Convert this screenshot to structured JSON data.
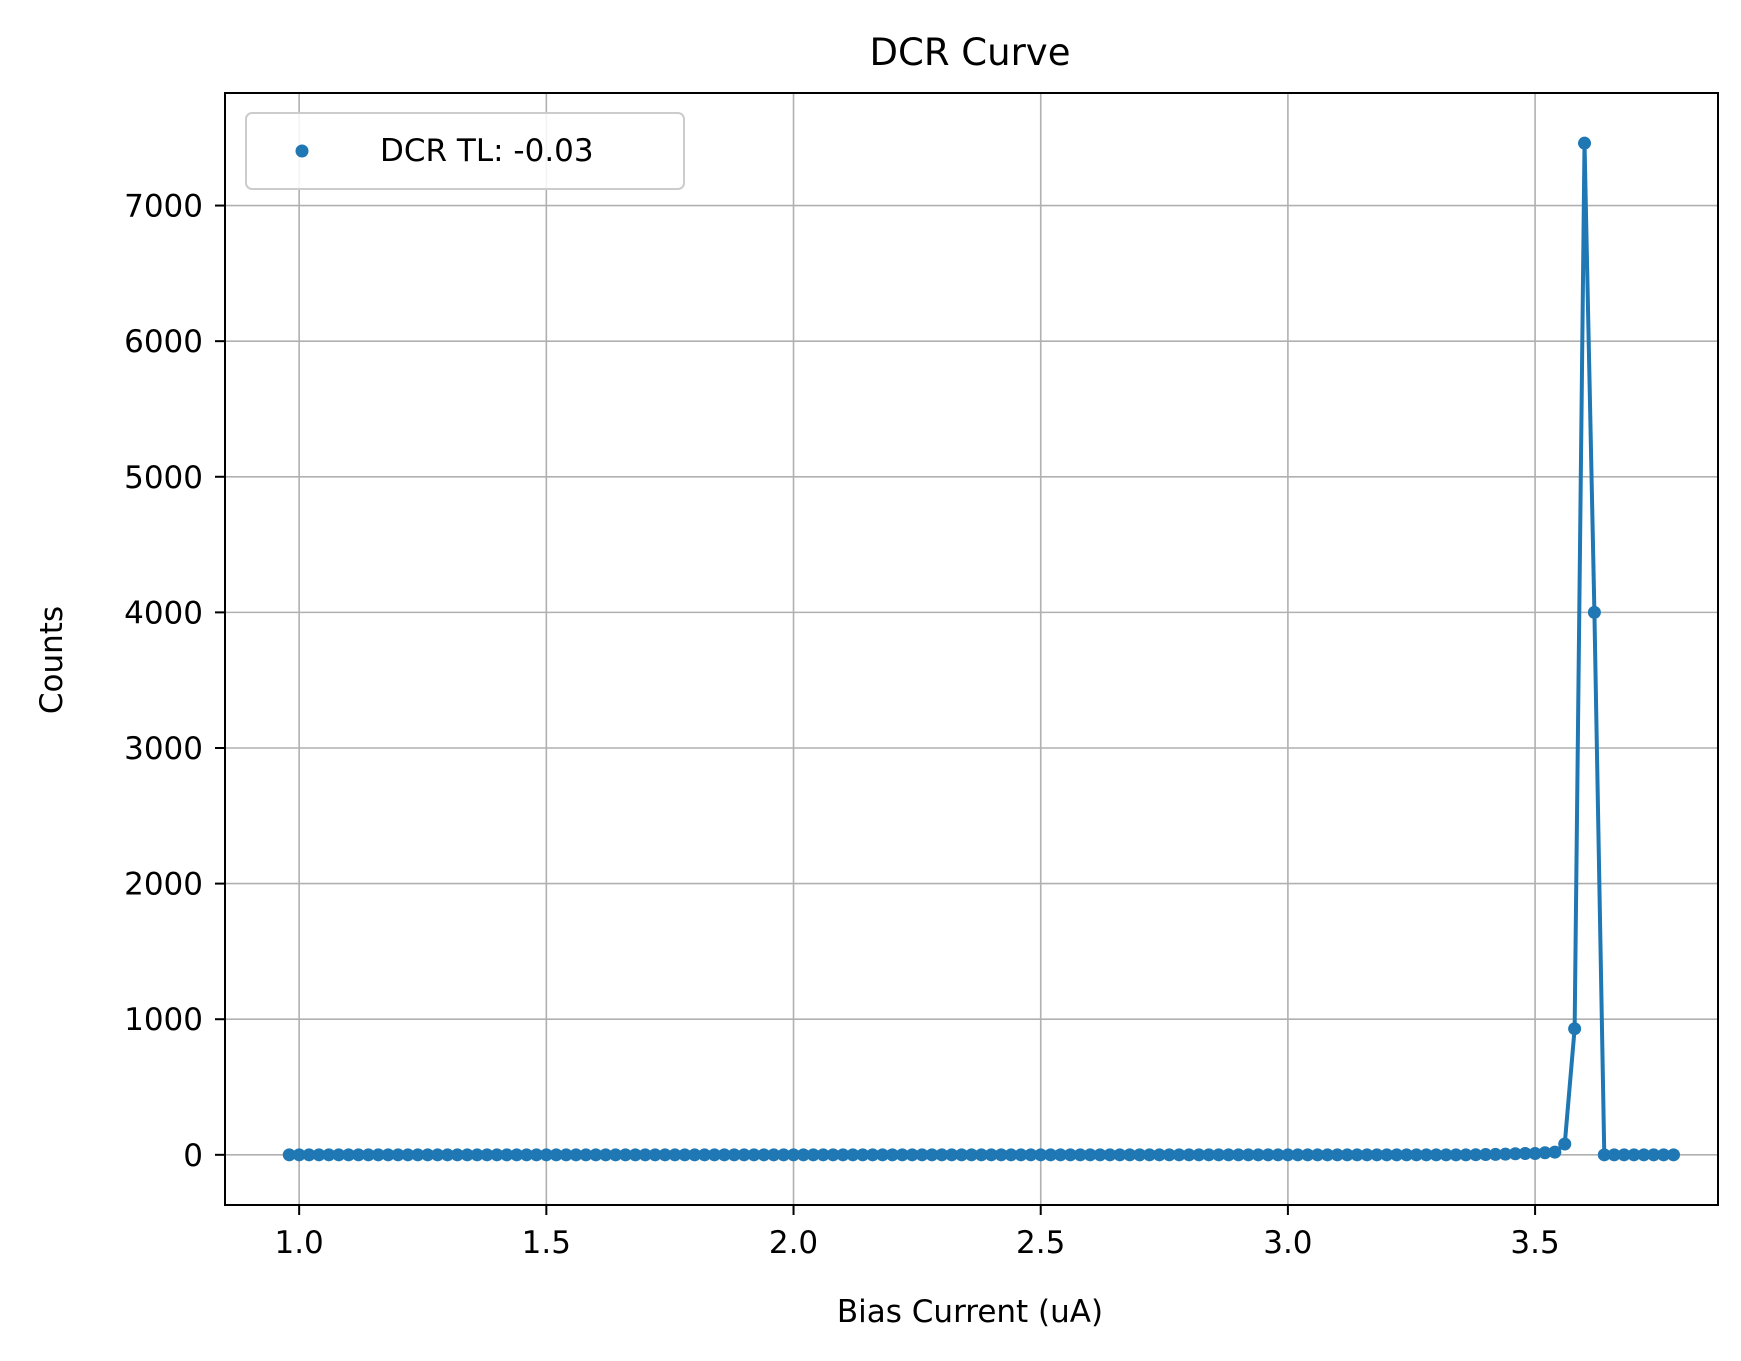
{
  "chart_data": {
    "type": "line",
    "title": "DCR Curve",
    "xlabel": "Bias Current (uA)",
    "ylabel": "Counts",
    "xlim": [
      0.85,
      3.87
    ],
    "ylim": [
      -370,
      7830
    ],
    "xticks": [
      1.0,
      1.5,
      2.0,
      2.5,
      3.0,
      3.5
    ],
    "xtick_labels": [
      "1.0",
      "1.5",
      "2.0",
      "2.5",
      "3.0",
      "3.5"
    ],
    "yticks": [
      0,
      1000,
      2000,
      3000,
      4000,
      5000,
      6000,
      7000
    ],
    "ytick_labels": [
      "0",
      "1000",
      "2000",
      "3000",
      "4000",
      "5000",
      "6000",
      "7000"
    ],
    "grid": true,
    "legend": {
      "position": "top-left",
      "entries": [
        "DCR TL: -0.03"
      ]
    },
    "series": [
      {
        "name": "DCR TL: -0.03",
        "color": "#1f77b4",
        "marker": "circle",
        "line": true,
        "x_start": 0.98,
        "x_step": 0.02,
        "x_end": 3.72,
        "values": [
          0,
          0,
          0,
          0,
          0,
          0,
          0,
          0,
          0,
          0,
          0,
          0,
          0,
          0,
          0,
          0,
          0,
          0,
          0,
          0,
          0,
          0,
          0,
          0,
          0,
          0,
          0,
          0,
          0,
          0,
          0,
          0,
          0,
          0,
          0,
          0,
          0,
          0,
          0,
          0,
          0,
          0,
          0,
          0,
          0,
          0,
          0,
          0,
          0,
          0,
          0,
          0,
          0,
          0,
          0,
          0,
          0,
          0,
          0,
          0,
          0,
          0,
          0,
          0,
          0,
          0,
          0,
          0,
          0,
          0,
          0,
          0,
          0,
          0,
          0,
          0,
          0,
          0,
          0,
          0,
          0,
          0,
          0,
          0,
          0,
          0,
          0,
          0,
          0,
          0,
          0,
          0,
          0,
          0,
          0,
          0,
          0,
          0,
          0,
          0,
          0,
          0,
          0,
          0,
          0,
          0,
          0,
          0,
          0,
          0,
          0,
          0,
          0,
          0,
          0,
          0,
          0,
          0,
          0,
          0,
          1,
          2,
          3,
          5,
          8,
          10,
          10,
          15,
          20,
          80,
          930,
          7460,
          4000,
          0,
          0,
          0,
          0,
          0,
          0,
          0,
          0
        ]
      }
    ]
  }
}
